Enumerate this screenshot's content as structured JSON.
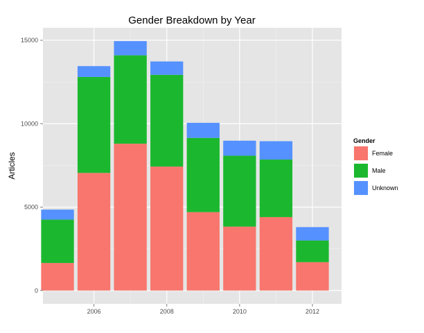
{
  "chart_data": {
    "type": "bar",
    "stacked": true,
    "title": "Gender Breakdown by Year",
    "xlabel": "",
    "ylabel": "Articles",
    "x": [
      2005,
      2006,
      2007,
      2008,
      2009,
      2010,
      2011,
      2012
    ],
    "series": [
      {
        "name": "Female",
        "color": "#F8766D",
        "values": [
          1650,
          7050,
          8800,
          7430,
          4700,
          3830,
          4400,
          1700
        ]
      },
      {
        "name": "Male",
        "color": "#1BB82F",
        "values": [
          2600,
          5750,
          5300,
          5500,
          4450,
          4250,
          3450,
          1300
        ]
      },
      {
        "name": "Unknown",
        "color": "#5591FF",
        "values": [
          600,
          650,
          850,
          800,
          900,
          900,
          1100,
          800
        ]
      }
    ],
    "xlim": [
      2004.6,
      2012.8
    ],
    "ylim": [
      -800,
      15750
    ],
    "xticks": [
      2006,
      2008,
      2010,
      2012
    ],
    "xtick_labels": [
      "2006",
      "2008",
      "2010",
      "2012"
    ],
    "yticks": [
      0,
      5000,
      10000,
      15000
    ],
    "ytick_labels": [
      "0",
      "5000",
      "10000",
      "15000"
    ],
    "grid": true,
    "legend": {
      "title": "Gender",
      "position": "right"
    }
  }
}
